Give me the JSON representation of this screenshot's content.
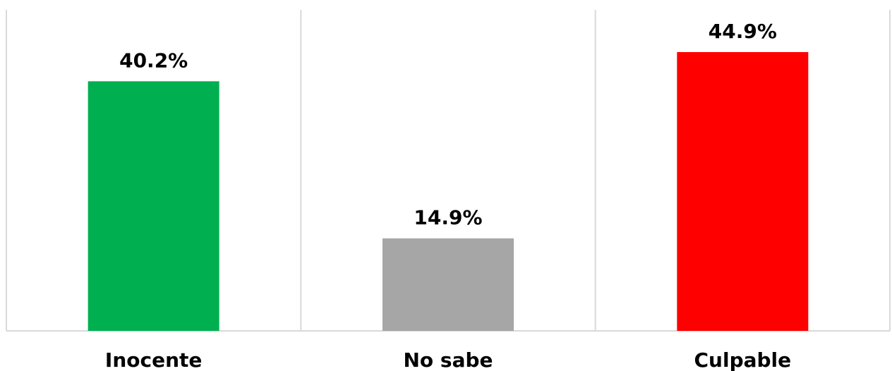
{
  "chart_data": {
    "type": "bar",
    "title": "",
    "xlabel": "",
    "ylabel": "",
    "categories": [
      "Inocente",
      "No sabe",
      "Culpable"
    ],
    "values": [
      40.2,
      14.9,
      44.9
    ],
    "value_labels": [
      "40.2%",
      "14.9%",
      "44.9%"
    ],
    "colors": [
      "#00B050",
      "#A6A6A6",
      "#FF0000"
    ],
    "ylim": [
      0,
      50
    ],
    "grid": "vertical category separators",
    "legend": "none"
  }
}
